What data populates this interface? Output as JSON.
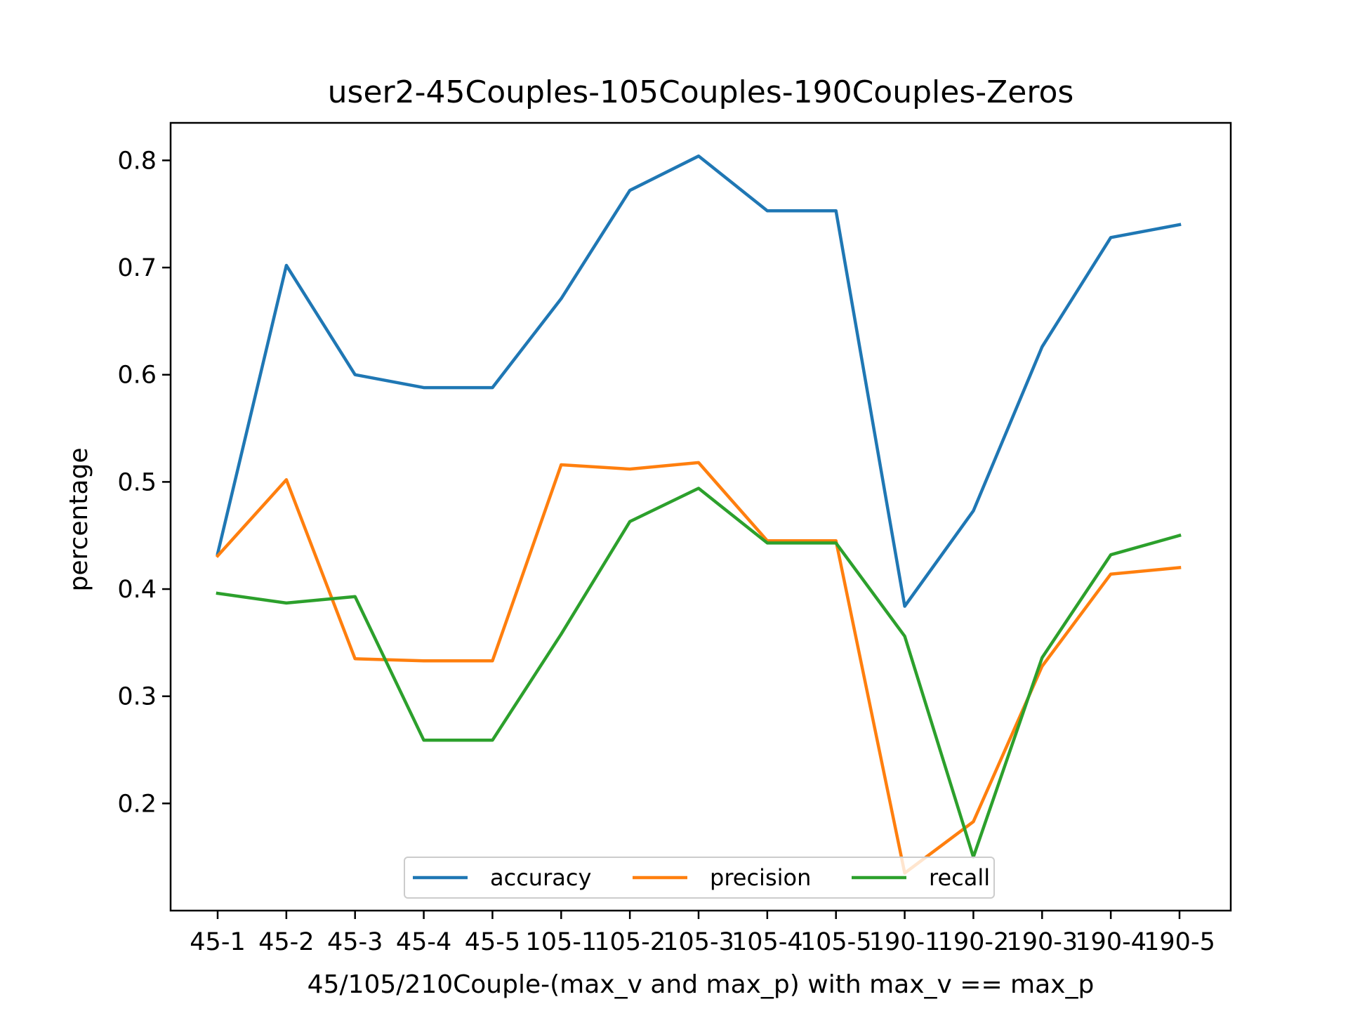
{
  "chart_data": {
    "type": "line",
    "title": "user2-45Couples-105Couples-190Couples-Zeros",
    "xlabel": "45/105/210Couple-(max_v and max_p) with max_v == max_p",
    "ylabel": "percentage",
    "categories": [
      "45-1",
      "45-2",
      "45-3",
      "45-4",
      "45-5",
      "105-1",
      "105-2",
      "105-3",
      "105-4",
      "105-5",
      "190-1",
      "190-2",
      "190-3",
      "190-4",
      "190-5"
    ],
    "ylim": [
      0.1,
      0.835
    ],
    "yticks": [
      0.2,
      0.3,
      0.4,
      0.5,
      0.6,
      0.7,
      0.8
    ],
    "ytick_labels": [
      "0.2",
      "0.3",
      "0.4",
      "0.5",
      "0.6",
      "0.7",
      "0.8"
    ],
    "grid": false,
    "legend": {
      "placement": "lower center",
      "columns": 3
    },
    "series": [
      {
        "name": "accuracy",
        "color": "#1f77b4",
        "values": [
          0.433,
          0.702,
          0.6,
          0.588,
          0.588,
          0.671,
          0.772,
          0.804,
          0.753,
          0.753,
          0.384,
          0.473,
          0.626,
          0.728,
          0.74
        ]
      },
      {
        "name": "precision",
        "color": "#ff7f0e",
        "values": [
          0.431,
          0.502,
          0.335,
          0.333,
          0.333,
          0.516,
          0.512,
          0.518,
          0.445,
          0.445,
          0.135,
          0.183,
          0.328,
          0.414,
          0.42
        ]
      },
      {
        "name": "recall",
        "color": "#2ca02c",
        "values": [
          0.396,
          0.387,
          0.393,
          0.259,
          0.259,
          0.358,
          0.463,
          0.494,
          0.443,
          0.443,
          0.356,
          0.15,
          0.336,
          0.432,
          0.45
        ]
      }
    ]
  }
}
